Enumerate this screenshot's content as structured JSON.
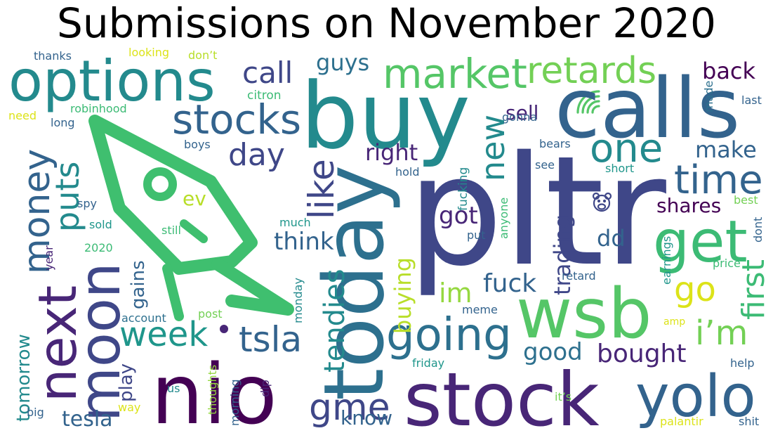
{
  "title": "Submissions on November 2020",
  "palette": {
    "d1": "#440154",
    "d2": "#482677",
    "p1": "#3f4788",
    "b1": "#33638d",
    "b2": "#2d708e",
    "t1": "#238a8d",
    "t2": "#1f968b",
    "g1": "#29af7f",
    "g2": "#3cbb75",
    "g3": "#55c667",
    "l1": "#73d055",
    "l2": "#95d840",
    "y1": "#b8de29",
    "y2": "#dce319",
    "rocket": "#3fbf6f"
  },
  "icons": [
    "rocket-icon",
    "rainbow-icon",
    "bear-icon"
  ],
  "words": [
    {
      "text": "pltr",
      "weight": 100,
      "color": "p1"
    },
    {
      "text": "buy",
      "weight": 90,
      "color": "t1"
    },
    {
      "text": "calls",
      "weight": 88,
      "color": "b1"
    },
    {
      "text": "stock",
      "weight": 80,
      "color": "d2"
    },
    {
      "text": "nio",
      "weight": 80,
      "color": "d1"
    },
    {
      "text": "today",
      "weight": 78,
      "color": "b2"
    },
    {
      "text": "wsb",
      "weight": 75,
      "color": "g3"
    },
    {
      "text": "options",
      "weight": 62,
      "color": "t1"
    },
    {
      "text": "moon",
      "weight": 62,
      "color": "p1"
    },
    {
      "text": "next",
      "weight": 60,
      "color": "d2"
    },
    {
      "text": "yolo",
      "weight": 58,
      "color": "b1"
    },
    {
      "text": "get",
      "weight": 56,
      "color": "g2"
    },
    {
      "text": "going",
      "weight": 50,
      "color": "b2"
    },
    {
      "text": "market",
      "weight": 48,
      "color": "g3"
    },
    {
      "text": "stocks",
      "weight": 46,
      "color": "b1"
    },
    {
      "text": "time",
      "weight": 44,
      "color": "b1"
    },
    {
      "text": "retards",
      "weight": 42,
      "color": "l1"
    },
    {
      "text": "one",
      "weight": 42,
      "color": "t1"
    },
    {
      "text": "money",
      "weight": 42,
      "color": "b1"
    },
    {
      "text": "like",
      "weight": 40,
      "color": "p1"
    },
    {
      "text": "tsla",
      "weight": 40,
      "color": "b1"
    },
    {
      "text": "gme",
      "weight": 40,
      "color": "p1"
    },
    {
      "text": "week",
      "weight": 40,
      "color": "t2"
    },
    {
      "text": "go",
      "weight": 40,
      "color": "y2"
    },
    {
      "text": "i’m",
      "weight": 38,
      "color": "l1"
    },
    {
      "text": "puts",
      "weight": 38,
      "color": "t1"
    },
    {
      "text": "new",
      "weight": 38,
      "color": "t1"
    },
    {
      "text": "first",
      "weight": 36,
      "color": "g2"
    },
    {
      "text": "day",
      "weight": 36,
      "color": "p1"
    },
    {
      "text": "call",
      "weight": 34,
      "color": "p1"
    },
    {
      "text": "tendies",
      "weight": 34,
      "color": "t1"
    },
    {
      "text": "bought",
      "weight": 32,
      "color": "d2"
    },
    {
      "text": "im",
      "weight": 32,
      "color": "l2"
    },
    {
      "text": "fuck",
      "weight": 30,
      "color": "b1"
    },
    {
      "text": "good",
      "weight": 30,
      "color": "b2"
    },
    {
      "text": "got",
      "weight": 30,
      "color": "d2"
    },
    {
      "text": "think",
      "weight": 30,
      "color": "b1"
    },
    {
      "text": "buying",
      "weight": 30,
      "color": "y1"
    },
    {
      "text": "guys",
      "weight": 28,
      "color": "b2"
    },
    {
      "text": "back",
      "weight": 28,
      "color": "d1"
    },
    {
      "text": "make",
      "weight": 28,
      "color": "b1"
    },
    {
      "text": "right",
      "weight": 28,
      "color": "d2"
    },
    {
      "text": "trading",
      "weight": 28,
      "color": "p1"
    },
    {
      "text": "dd",
      "weight": 28,
      "color": "b1"
    },
    {
      "text": "shares",
      "weight": 26,
      "color": "d1"
    },
    {
      "text": "tesla",
      "weight": 26,
      "color": "b1"
    },
    {
      "text": "know",
      "weight": 26,
      "color": "b1"
    },
    {
      "text": "tomorrow",
      "weight": 24,
      "color": "t1"
    },
    {
      "text": "gains",
      "weight": 24,
      "color": "b1"
    },
    {
      "text": "sell",
      "weight": 24,
      "color": "d2"
    },
    {
      "text": "play",
      "weight": 22,
      "color": "p1"
    },
    {
      "text": "ev",
      "weight": 22,
      "color": "y1"
    },
    {
      "text": "fucking",
      "weight": 14,
      "color": "t1"
    },
    {
      "text": "robinhood",
      "weight": 14,
      "color": "g2"
    },
    {
      "text": "citron",
      "weight": 14,
      "color": "g2"
    },
    {
      "text": "thanks",
      "weight": 13,
      "color": "b1"
    },
    {
      "text": "looking",
      "weight": 13,
      "color": "y2"
    },
    {
      "text": "don’t",
      "weight": 13,
      "color": "y1"
    },
    {
      "text": "need",
      "weight": 13,
      "color": "y2"
    },
    {
      "text": "long",
      "weight": 13,
      "color": "b1"
    },
    {
      "text": "boys",
      "weight": 13,
      "color": "b1"
    },
    {
      "text": "gonna",
      "weight": 13,
      "color": "b1"
    },
    {
      "text": "made",
      "weight": 13,
      "color": "b2"
    },
    {
      "text": "last",
      "weight": 13,
      "color": "b1"
    },
    {
      "text": "bears",
      "weight": 13,
      "color": "b1"
    },
    {
      "text": "see",
      "weight": 13,
      "color": "b1"
    },
    {
      "text": "short",
      "weight": 13,
      "color": "t2"
    },
    {
      "text": "hold",
      "weight": 13,
      "color": "b1"
    },
    {
      "text": "anyone",
      "weight": 13,
      "color": "g2"
    },
    {
      "text": "best",
      "weight": 13,
      "color": "l1"
    },
    {
      "text": "dont",
      "weight": 13,
      "color": "b1"
    },
    {
      "text": "spy",
      "weight": 13,
      "color": "b1"
    },
    {
      "text": "sold",
      "weight": 13,
      "color": "t2"
    },
    {
      "text": "still",
      "weight": 13,
      "color": "g2"
    },
    {
      "text": "much",
      "weight": 13,
      "color": "t2"
    },
    {
      "text": "put",
      "weight": 13,
      "color": "b1"
    },
    {
      "text": "2020",
      "weight": 13,
      "color": "g2"
    },
    {
      "text": "year",
      "weight": 13,
      "color": "d2"
    },
    {
      "text": "retard",
      "weight": 13,
      "color": "b1"
    },
    {
      "text": "price",
      "weight": 13,
      "color": "g2"
    },
    {
      "text": "earnings",
      "weight": 13,
      "color": "t2"
    },
    {
      "text": "account",
      "weight": 13,
      "color": "b2"
    },
    {
      "text": "post",
      "weight": 13,
      "color": "l1"
    },
    {
      "text": "monday",
      "weight": 13,
      "color": "t1"
    },
    {
      "text": "meme",
      "weight": 13,
      "color": "b1"
    },
    {
      "text": "amp",
      "weight": 13,
      "color": "y2"
    },
    {
      "text": "friday",
      "weight": 13,
      "color": "t2"
    },
    {
      "text": "help",
      "weight": 13,
      "color": "b1"
    },
    {
      "text": "thoughts",
      "weight": 13,
      "color": "l2"
    },
    {
      "text": "us",
      "weight": 13,
      "color": "t1"
    },
    {
      "text": "way",
      "weight": 13,
      "color": "y2"
    },
    {
      "text": "big",
      "weight": 13,
      "color": "b1"
    },
    {
      "text": "dip",
      "weight": 13,
      "color": "d2"
    },
    {
      "text": "morning",
      "weight": 13,
      "color": "b1"
    },
    {
      "text": "it’s",
      "weight": 13,
      "color": "l1"
    },
    {
      "text": "palantir",
      "weight": 13,
      "color": "y2"
    },
    {
      "text": "shit",
      "weight": 13,
      "color": "b1"
    }
  ]
}
